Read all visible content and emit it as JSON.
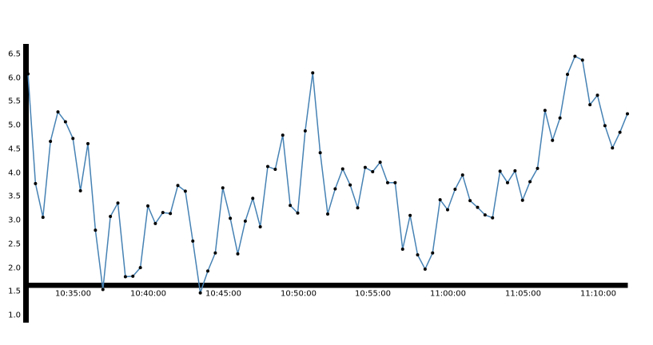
{
  "chart_data": {
    "type": "line",
    "title": "",
    "xlabel": "",
    "ylabel": "",
    "grid": false,
    "legend": "none",
    "line_color": "#4682b4",
    "point_color": "#000000",
    "x_range": [
      "10:32:00",
      "11:12:00"
    ],
    "ylim": [
      0.85,
      6.7
    ],
    "x_ticks": [
      "10:35:00",
      "10:40:00",
      "10:45:00",
      "10:50:00",
      "10:55:00",
      "11:00:00",
      "11:05:00",
      "11:10:00"
    ],
    "y_ticks": [
      "1.0",
      "1.5",
      "2.0",
      "2.5",
      "3.0",
      "3.5",
      "4.0",
      "4.5",
      "5.0",
      "5.5",
      "6.0",
      "6.5"
    ],
    "x_step_seconds": 30,
    "x_start": "10:32:00",
    "values": [
      6.07,
      3.76,
      3.05,
      4.65,
      5.27,
      5.06,
      4.71,
      3.61,
      4.6,
      2.78,
      1.53,
      3.07,
      3.35,
      1.8,
      1.81,
      1.99,
      3.29,
      2.92,
      3.15,
      3.13,
      3.72,
      3.6,
      2.55,
      1.46,
      1.92,
      2.3,
      3.67,
      3.03,
      2.28,
      2.97,
      3.45,
      2.85,
      4.12,
      4.06,
      4.78,
      3.3,
      3.14,
      4.87,
      6.09,
      4.41,
      3.12,
      3.65,
      4.07,
      3.73,
      3.25,
      4.1,
      4.01,
      4.21,
      3.78,
      3.78,
      2.38,
      3.09,
      2.26,
      1.96,
      2.3,
      3.42,
      3.21,
      3.64,
      3.94,
      3.4,
      3.26,
      3.1,
      3.04,
      4.02,
      3.78,
      4.03,
      3.41,
      3.8,
      4.08,
      5.3,
      4.67,
      5.14,
      6.06,
      6.44,
      6.36,
      5.42,
      5.62,
      4.98,
      4.51,
      4.84,
      5.23
    ]
  }
}
